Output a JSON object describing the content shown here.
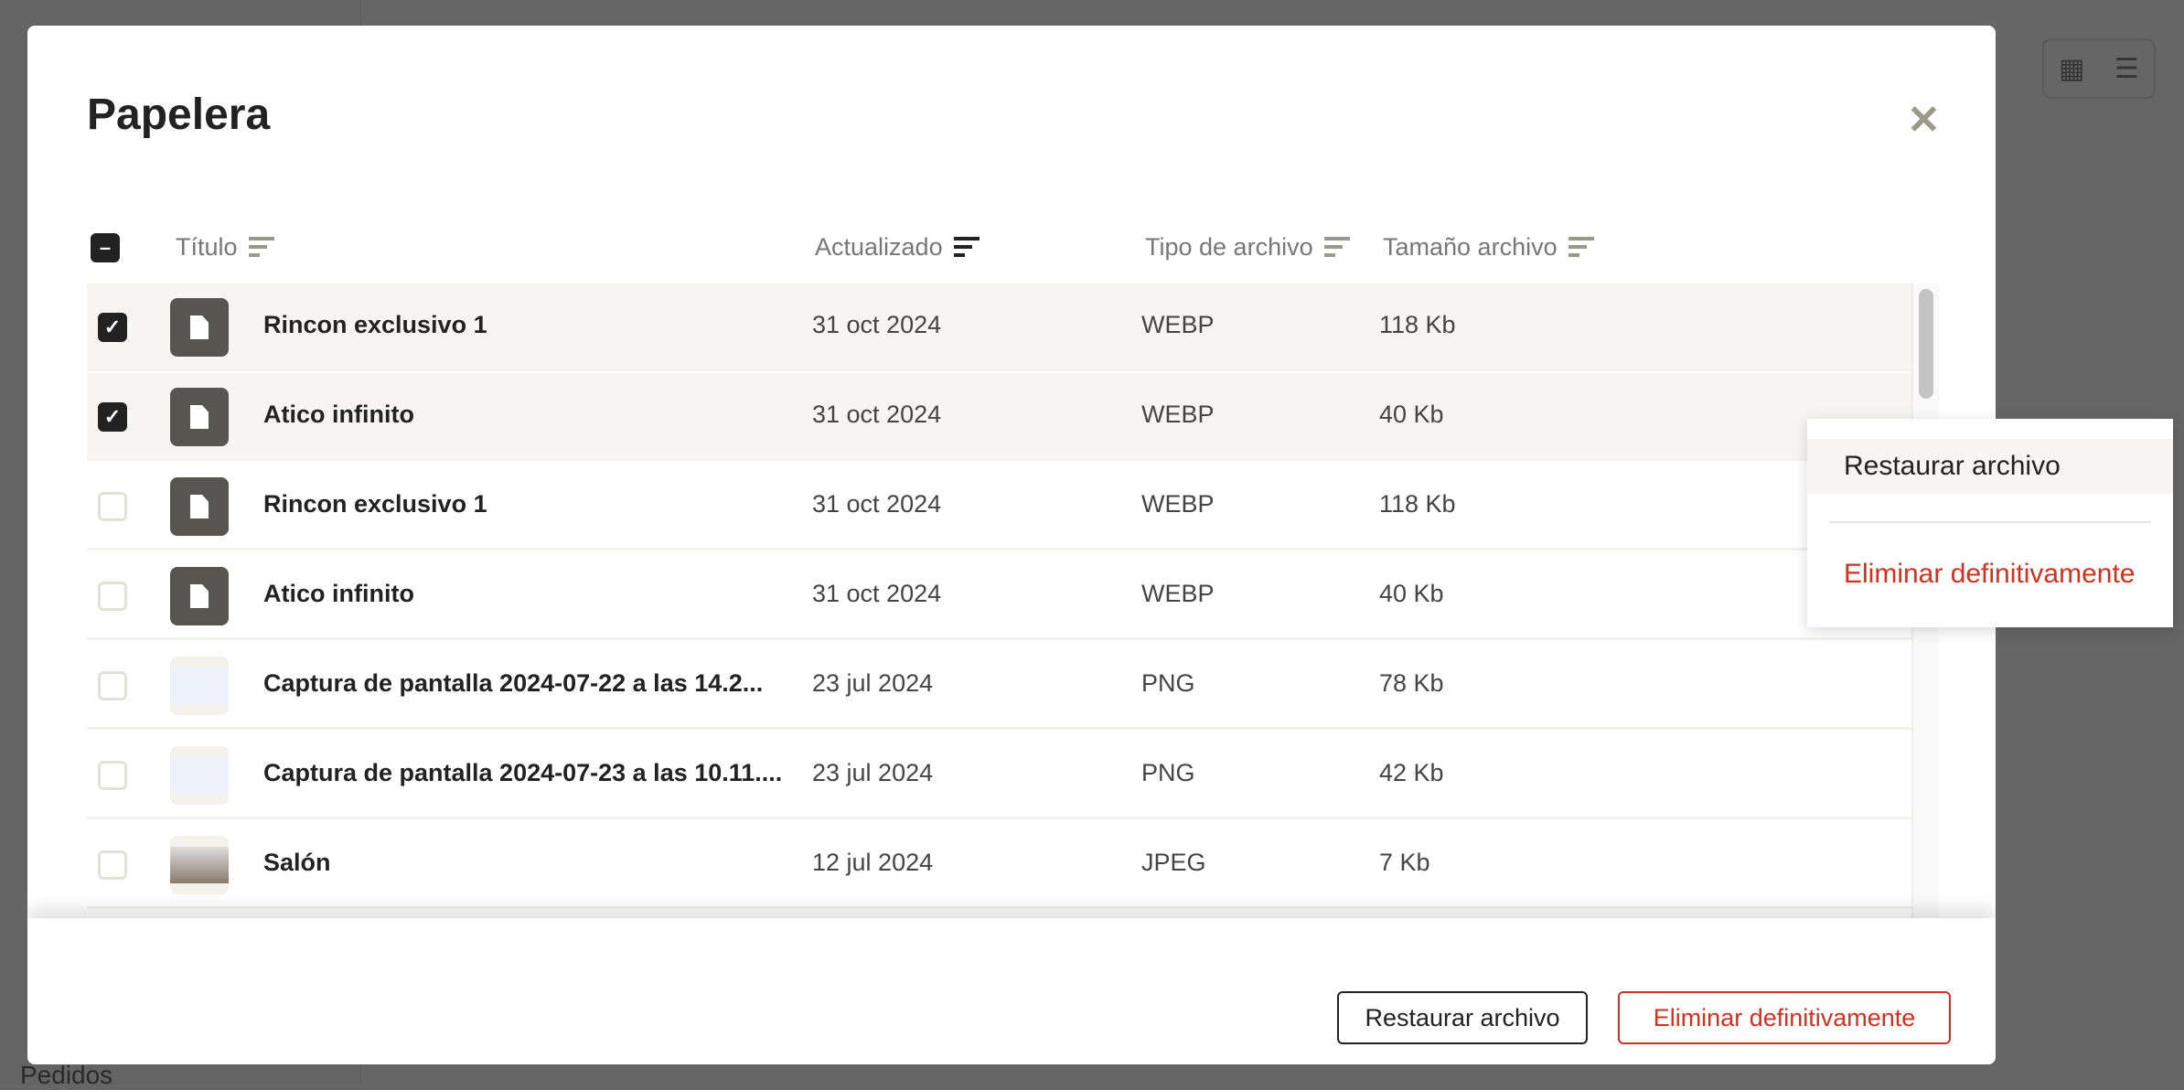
{
  "background": {
    "sidebar_item": "Pedidos",
    "view_toggle": {
      "grid_icon": "grid-icon",
      "list_icon": "list-icon",
      "active": "list"
    }
  },
  "modal": {
    "title": "Papelera",
    "close_icon": "close-icon",
    "columns": [
      {
        "label": "Título",
        "sort_active": false
      },
      {
        "label": "Actualizado",
        "sort_active": true
      },
      {
        "label": "Tipo de archivo",
        "sort_active": false
      },
      {
        "label": "Tamaño archivo",
        "sort_active": false
      }
    ],
    "select_all_state": "indeterminate",
    "rows": [
      {
        "title": "Rincon exclusivo 1",
        "updated": "31 oct 2024",
        "type": "WEBP",
        "size": "118 Kb",
        "selected": true,
        "thumb": "file-icon"
      },
      {
        "title": "Atico infinito",
        "updated": "31 oct 2024",
        "type": "WEBP",
        "size": "40 Kb",
        "selected": true,
        "thumb": "file-icon"
      },
      {
        "title": "Rincon exclusivo 1",
        "updated": "31 oct 2024",
        "type": "WEBP",
        "size": "118 Kb",
        "selected": false,
        "thumb": "file-icon"
      },
      {
        "title": "Atico infinito",
        "updated": "31 oct 2024",
        "type": "WEBP",
        "size": "40 Kb",
        "selected": false,
        "thumb": "file-icon"
      },
      {
        "title": "Captura de pantalla 2024-07-22 a las 14.2...",
        "updated": "23 jul 2024",
        "type": "PNG",
        "size": "78 Kb",
        "selected": false,
        "thumb": "image"
      },
      {
        "title": "Captura de pantalla 2024-07-23 a las 10.11....",
        "updated": "23 jul 2024",
        "type": "PNG",
        "size": "42 Kb",
        "selected": false,
        "thumb": "image"
      },
      {
        "title": "Salón",
        "updated": "12 jul 2024",
        "type": "JPEG",
        "size": "7 Kb",
        "selected": false,
        "thumb": "image"
      }
    ],
    "footer": {
      "restore_label": "Restaurar archivo",
      "delete_label": "Eliminar definitivamente"
    }
  },
  "context_menu": {
    "restore_label": "Restaurar archivo",
    "delete_label": "Eliminar definitivamente"
  },
  "colors": {
    "danger": "#d0321f",
    "selected_row": "#f6f5f1",
    "thumb_bg": "#56554f"
  }
}
